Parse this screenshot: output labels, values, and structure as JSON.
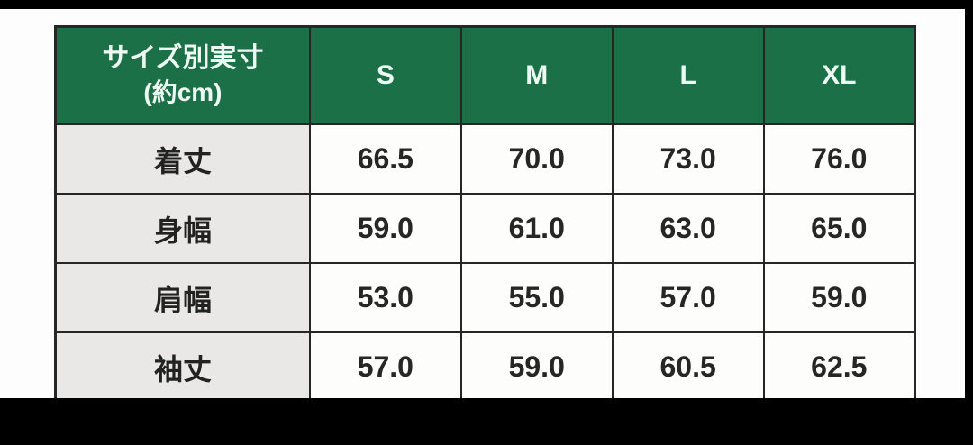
{
  "page": {
    "description_label": "size-spec-table-image",
    "background_color": "#fefdfd",
    "letterbox_color": "#000000"
  },
  "table": {
    "corner": {
      "line1": "サイズ別実寸",
      "line2": "(約cm)"
    },
    "columns": [
      "S",
      "M",
      "L",
      "XL"
    ],
    "rows": [
      {
        "label": "着丈",
        "values": [
          "66.5",
          "70.0",
          "73.0",
          "76.0"
        ]
      },
      {
        "label": "身幅",
        "values": [
          "59.0",
          "61.0",
          "63.0",
          "65.0"
        ]
      },
      {
        "label": "肩幅",
        "values": [
          "53.0",
          "55.0",
          "57.0",
          "59.0"
        ]
      },
      {
        "label": "袖丈",
        "values": [
          "57.0",
          "59.0",
          "60.5",
          "62.5"
        ]
      }
    ],
    "colors": {
      "header_bg": "#1b7048",
      "header_text": "#eef9f3",
      "row_label_bg": "#e9e8e6",
      "cell_bg": "#fdfdfc",
      "border": "#262626"
    }
  }
}
